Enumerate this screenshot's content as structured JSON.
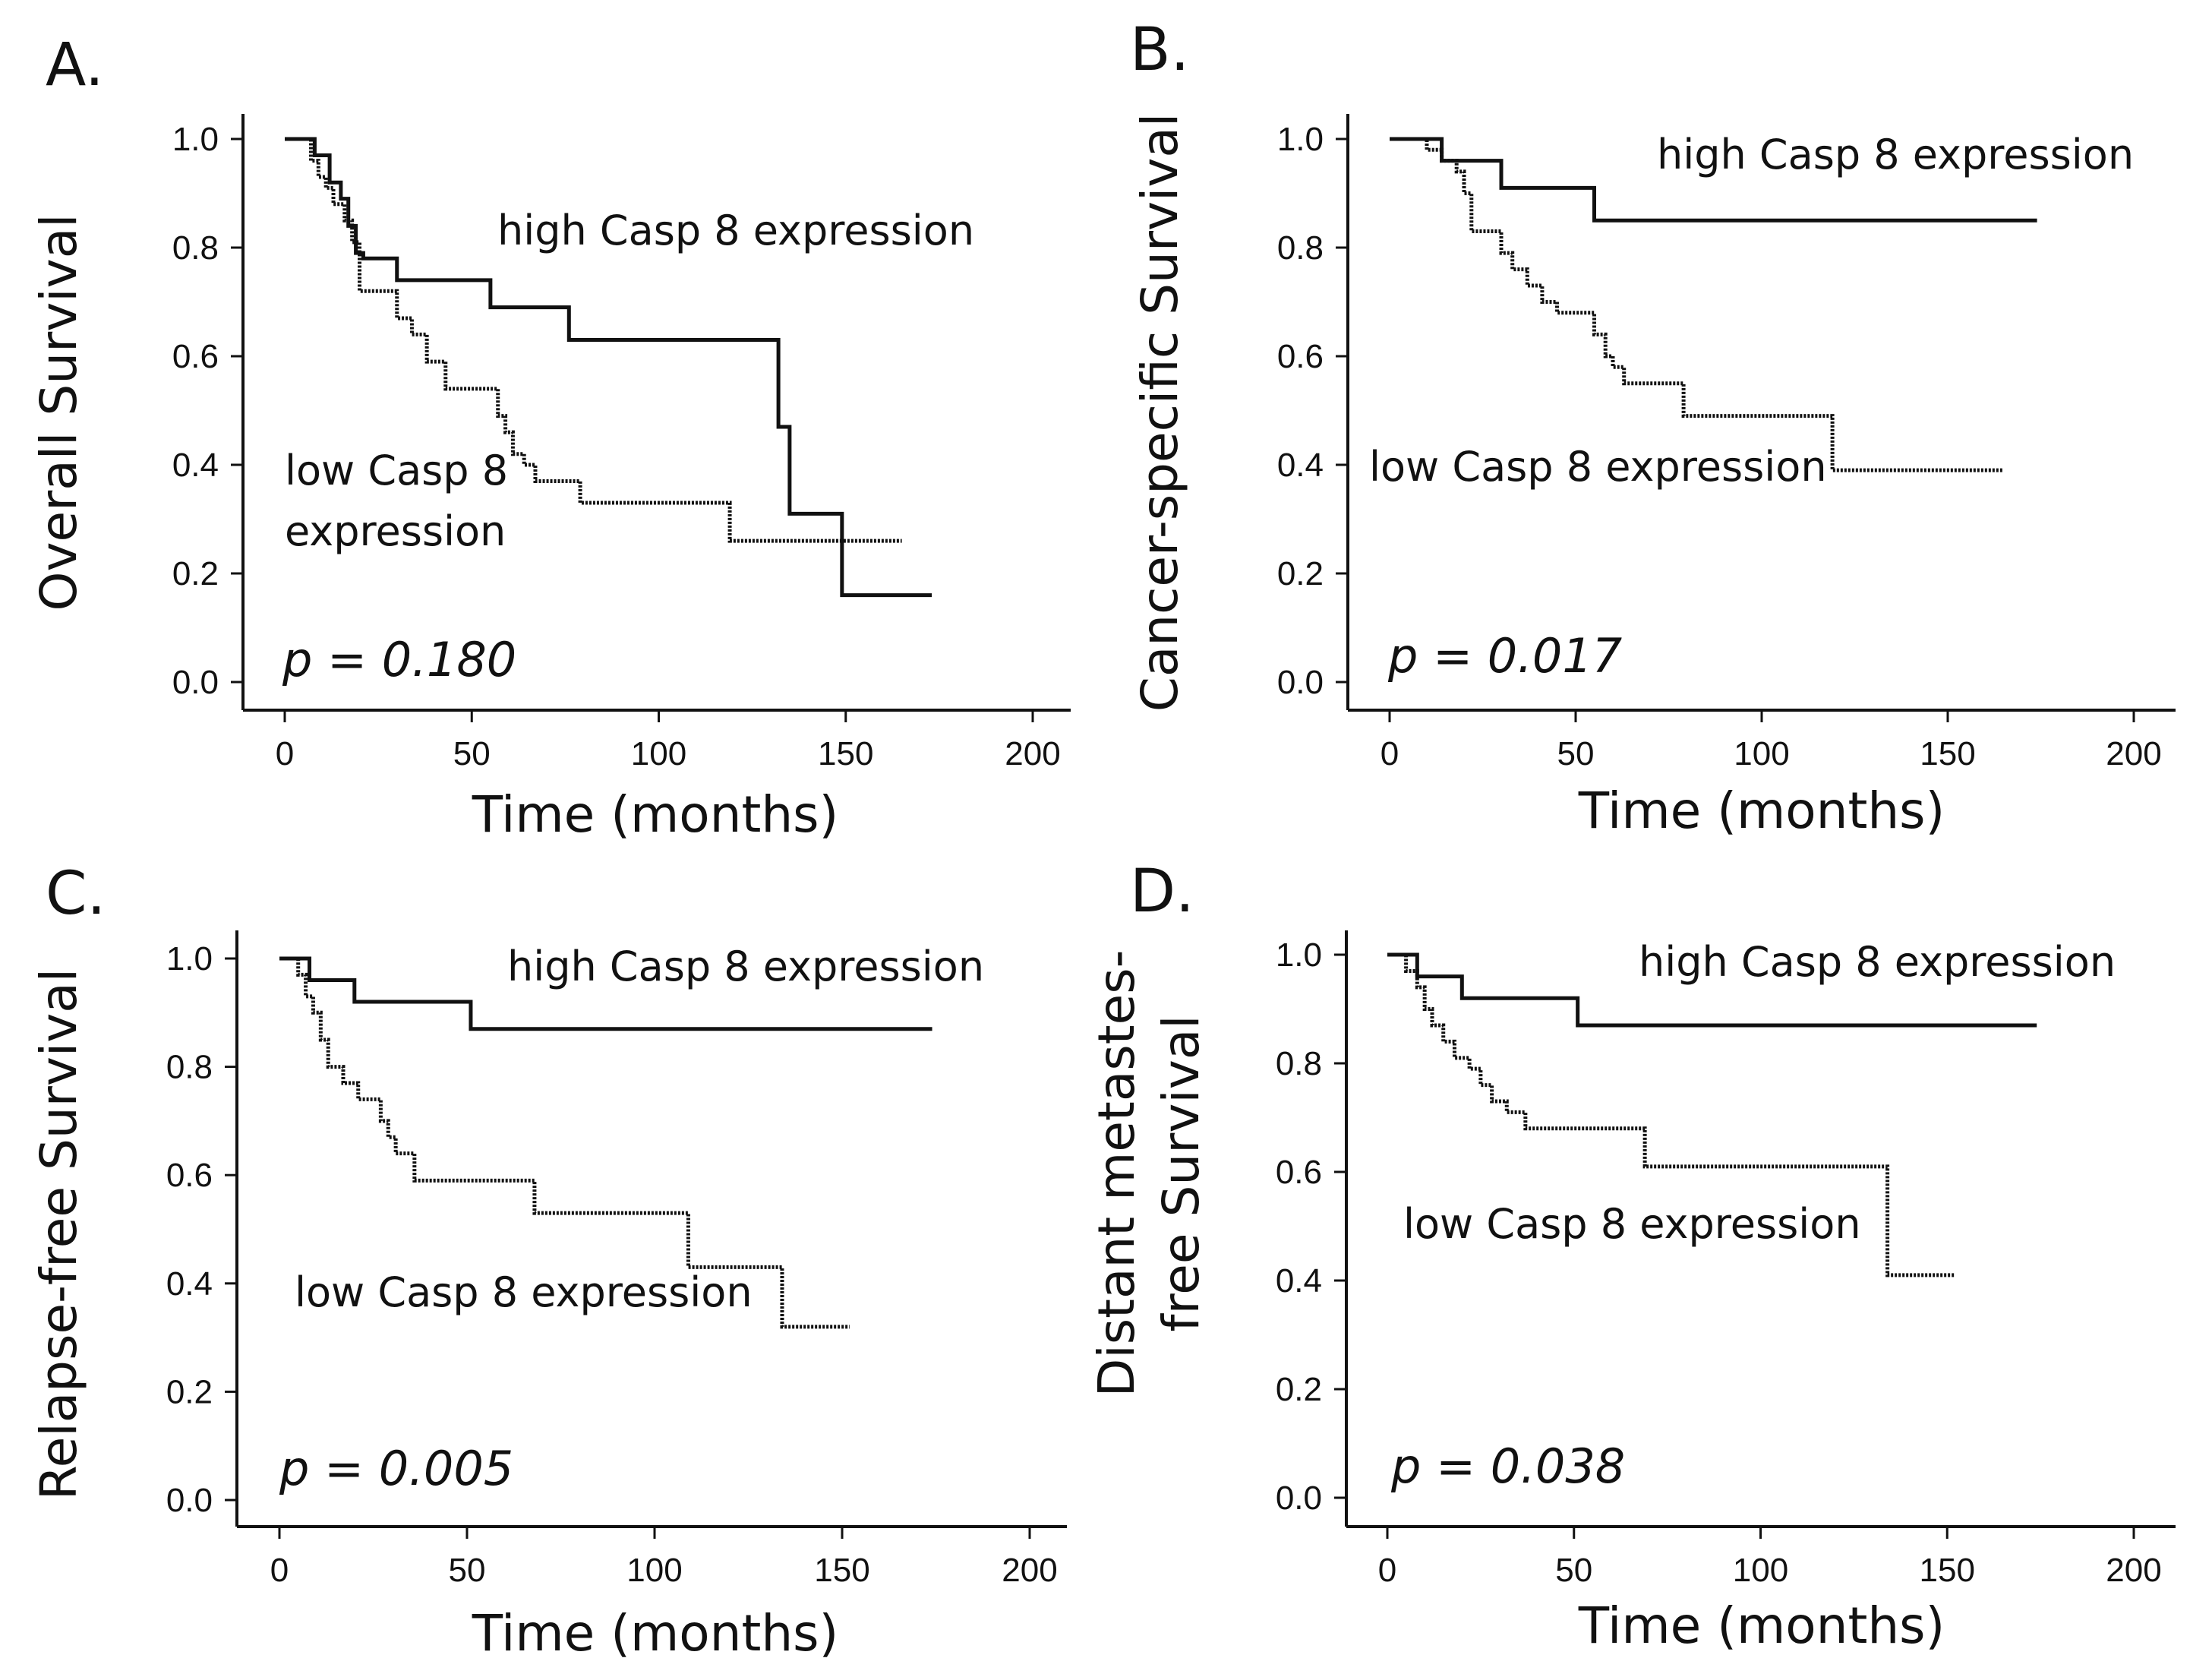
{
  "chart_data": [
    {
      "type": "line",
      "panel": "A.",
      "ylabel": "Overall Survival",
      "xlabel": "Time (months)",
      "xlim": [
        0,
        200
      ],
      "ylim": [
        0,
        1
      ],
      "xticks": [
        "0",
        "50",
        "100",
        "150",
        "200"
      ],
      "yticks": [
        "0.0",
        "0.2",
        "0.4",
        "0.6",
        "0.8",
        "1.0"
      ],
      "p_value": "p = 0.180",
      "series": [
        {
          "name": "high Casp 8 expression",
          "style": "solid",
          "label_lines": [
            "high Casp 8 expression"
          ],
          "x": [
            0,
            8,
            12,
            15,
            17,
            19,
            21,
            30,
            55,
            76,
            132,
            135,
            149,
            173
          ],
          "y": [
            1.0,
            0.97,
            0.92,
            0.89,
            0.84,
            0.79,
            0.78,
            0.74,
            0.69,
            0.63,
            0.47,
            0.31,
            0.16,
            0.16
          ]
        },
        {
          "name": "low Casp 8 expression",
          "style": "dotted",
          "label_lines": [
            "low Casp 8",
            "expression"
          ],
          "x": [
            0,
            7,
            9,
            11,
            13,
            16,
            18,
            20,
            30,
            34,
            38,
            43,
            57,
            59,
            61,
            64,
            67,
            79,
            119,
            165
          ],
          "y": [
            1.0,
            0.96,
            0.93,
            0.91,
            0.88,
            0.85,
            0.81,
            0.72,
            0.67,
            0.64,
            0.59,
            0.54,
            0.49,
            0.46,
            0.42,
            0.4,
            0.37,
            0.33,
            0.26,
            0.26
          ]
        }
      ]
    },
    {
      "type": "line",
      "panel": "B.",
      "ylabel": "Cancer-specific Survival",
      "xlabel": "Time (months)",
      "xlim": [
        0,
        200
      ],
      "ylim": [
        0,
        1
      ],
      "xticks": [
        "0",
        "50",
        "100",
        "150",
        "200"
      ],
      "yticks": [
        "0.0",
        "0.2",
        "0.4",
        "0.6",
        "0.8",
        "1.0"
      ],
      "p_value": "p = 0.017",
      "series": [
        {
          "name": "high Casp 8 expression",
          "style": "solid",
          "label_lines": [
            "high Casp 8 expression"
          ],
          "x": [
            0,
            14,
            30,
            55,
            174
          ],
          "y": [
            1.0,
            0.96,
            0.91,
            0.85,
            0.85
          ]
        },
        {
          "name": "low Casp 8 expression",
          "style": "dotted",
          "label_lines": [
            "low Casp 8 expression"
          ],
          "x": [
            0,
            10,
            14,
            18,
            20,
            22,
            30,
            33,
            37,
            41,
            45,
            55,
            58,
            60,
            63,
            79,
            119,
            165
          ],
          "y": [
            1.0,
            0.98,
            0.96,
            0.94,
            0.9,
            0.83,
            0.79,
            0.76,
            0.73,
            0.7,
            0.68,
            0.64,
            0.6,
            0.58,
            0.55,
            0.49,
            0.39,
            0.39
          ]
        }
      ]
    },
    {
      "type": "line",
      "panel": "C.",
      "ylabel": "Relapse-free Survival",
      "xlabel": "Time (months)",
      "xlim": [
        0,
        200
      ],
      "ylim": [
        0,
        1
      ],
      "xticks": [
        "0",
        "50",
        "100",
        "150",
        "200"
      ],
      "yticks": [
        "0.0",
        "0.2",
        "0.4",
        "0.6",
        "0.8",
        "1.0"
      ],
      "p_value": "p = 0.005",
      "series": [
        {
          "name": "high Casp 8 expression",
          "style": "solid",
          "label_lines": [
            "high Casp 8 expression"
          ],
          "x": [
            0,
            8,
            20,
            51,
            174
          ],
          "y": [
            1.0,
            0.96,
            0.92,
            0.87,
            0.87
          ]
        },
        {
          "name": "low Casp 8 expression",
          "style": "dotted",
          "label_lines": [
            "low Casp 8 expression"
          ],
          "x": [
            0,
            5,
            7,
            9,
            11,
            13,
            17,
            21,
            27,
            29,
            31,
            36,
            68,
            109,
            134,
            152
          ],
          "y": [
            1.0,
            0.97,
            0.93,
            0.9,
            0.85,
            0.8,
            0.77,
            0.74,
            0.7,
            0.67,
            0.64,
            0.59,
            0.53,
            0.43,
            0.32,
            0.32
          ]
        }
      ]
    },
    {
      "type": "line",
      "panel": "D.",
      "ylabel": "Distant metastes-free Survival",
      "ylabel_lines": [
        "Distant metastes-",
        "free Survival"
      ],
      "xlabel": "Time (months)",
      "xlim": [
        0,
        200
      ],
      "ylim": [
        0,
        1
      ],
      "xticks": [
        "0",
        "50",
        "100",
        "150",
        "200"
      ],
      "yticks": [
        "0.0",
        "0.2",
        "0.4",
        "0.6",
        "0.8",
        "1.0"
      ],
      "p_value": "p = 0.038",
      "series": [
        {
          "name": "high Casp 8 expression",
          "style": "solid",
          "label_lines": [
            "high Casp 8 expression"
          ],
          "x": [
            0,
            8,
            20,
            51,
            174
          ],
          "y": [
            1.0,
            0.96,
            0.92,
            0.87,
            0.87
          ]
        },
        {
          "name": "low Casp 8 expression",
          "style": "dotted",
          "label_lines": [
            "low Casp 8 expression"
          ],
          "x": [
            0,
            5,
            8,
            10,
            12,
            15,
            18,
            22,
            25,
            28,
            32,
            37,
            69,
            134,
            152
          ],
          "y": [
            1.0,
            0.97,
            0.94,
            0.9,
            0.87,
            0.84,
            0.81,
            0.79,
            0.76,
            0.73,
            0.71,
            0.68,
            0.61,
            0.41,
            0.41
          ]
        }
      ]
    }
  ]
}
